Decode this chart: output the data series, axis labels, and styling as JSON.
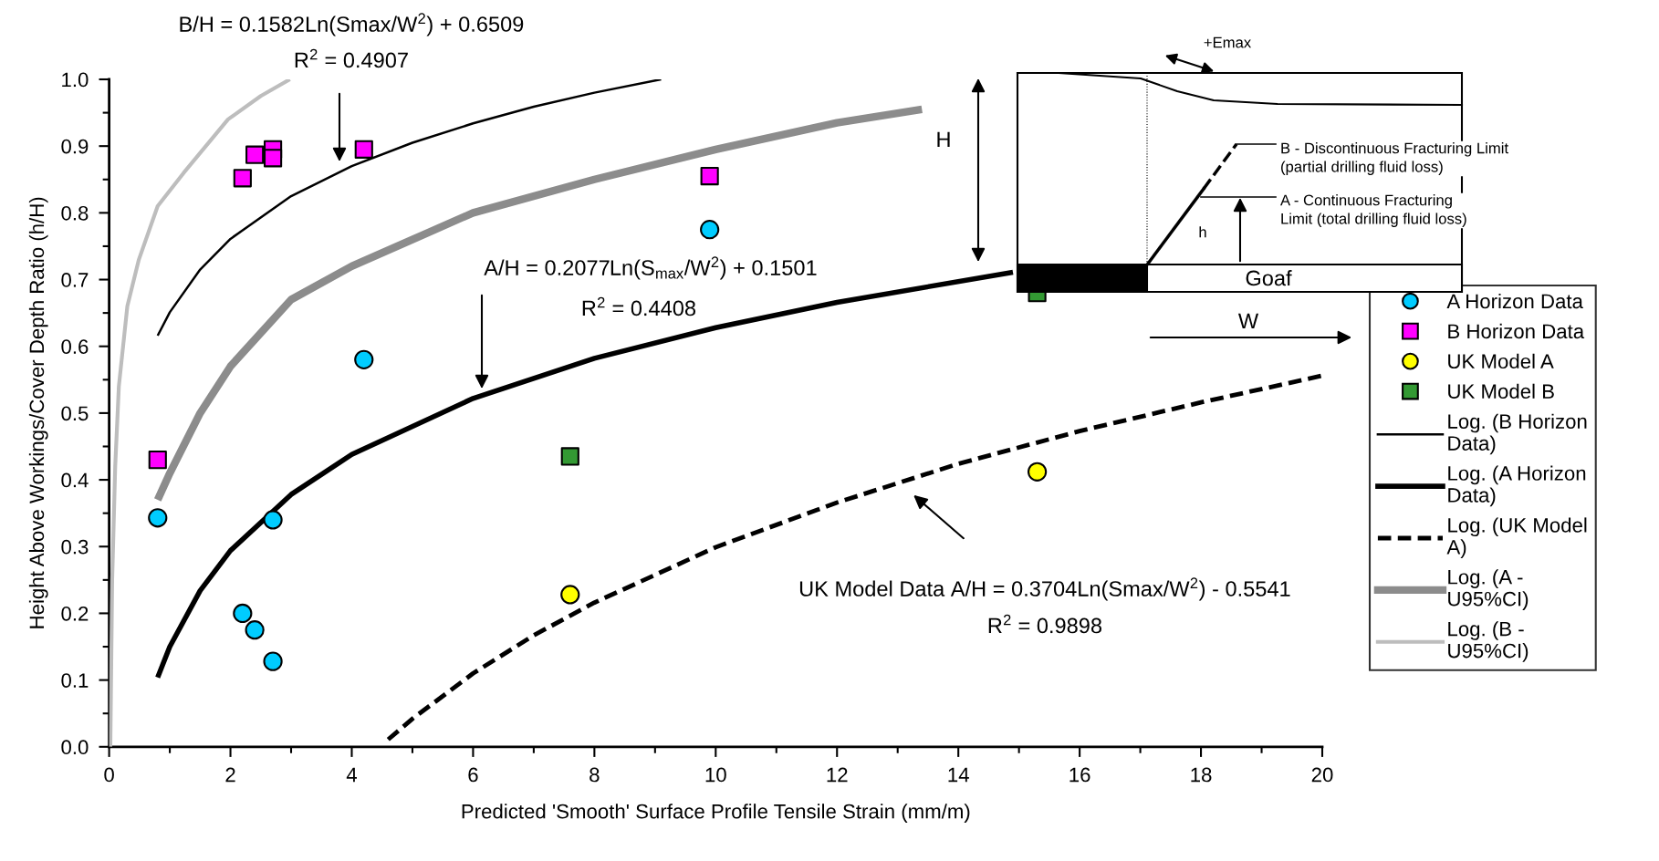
{
  "chart_data": {
    "type": "scatter",
    "xlabel": "Predicted 'Smooth' Surface Profile Tensile Strain (mm/m)",
    "ylabel": "Height Above Workings/Cover Depth Ratio (h/H)",
    "xlim": [
      0,
      20
    ],
    "ylim": [
      0,
      1.0
    ],
    "xticks": [
      0,
      2,
      4,
      6,
      8,
      10,
      12,
      14,
      16,
      18,
      20
    ],
    "yticks": [
      {
        "value": 0,
        "label": "0.0"
      },
      {
        "value": 0.1,
        "label": "0.1"
      },
      {
        "value": 0.2,
        "label": "0.2"
      },
      {
        "value": 0.3,
        "label": "0.3"
      },
      {
        "value": 0.4,
        "label": "0.4"
      },
      {
        "value": 0.5,
        "label": "0.5"
      },
      {
        "value": 0.6,
        "label": "0.6"
      },
      {
        "value": 0.7,
        "label": "0.7"
      },
      {
        "value": 0.8,
        "label": "0.8"
      },
      {
        "value": 0.9,
        "label": "0.9"
      },
      {
        "value": 1.0,
        "label": "1.0"
      }
    ],
    "legend": "right",
    "series": [
      {
        "name": "A Horizon Data",
        "marker": "circle",
        "color": "#00ccff",
        "x": [
          0.8,
          2.7,
          2.2,
          2.4,
          2.7,
          4.2,
          9.9
        ],
        "values": [
          0.343,
          0.34,
          0.2,
          0.175,
          0.128,
          0.58,
          0.775
        ]
      },
      {
        "name": "B Horizon Data",
        "marker": "square",
        "color": "#ff00ff",
        "x": [
          0.8,
          2.2,
          2.4,
          2.7,
          2.7,
          4.2,
          9.9
        ],
        "values": [
          0.43,
          0.852,
          0.887,
          0.895,
          0.882,
          0.895,
          0.855
        ]
      },
      {
        "name": "UK Model A",
        "marker": "circle",
        "color": "#ffff00",
        "x": [
          7.6,
          15.3
        ],
        "values": [
          0.228,
          0.412
        ]
      },
      {
        "name": "UK Model B",
        "marker": "square",
        "color": "#339933",
        "x": [
          7.6,
          15.3
        ],
        "values": [
          0.435,
          0.68
        ]
      },
      {
        "name": "Log. (B Horizon Data)",
        "type": "line",
        "line_style": "solid",
        "color": "#000000",
        "x": [
          0.8,
          1,
          1.5,
          2,
          3,
          4,
          5,
          6,
          7,
          8,
          9.1
        ],
        "values": [
          0.616,
          0.651,
          0.715,
          0.761,
          0.825,
          0.87,
          0.905,
          0.934,
          0.959,
          0.98,
          1.0
        ]
      },
      {
        "name": "Log. (A Horizon Data)",
        "type": "line",
        "line_style": "solid",
        "color": "#000000",
        "x": [
          0.8,
          1,
          1.5,
          2,
          3,
          4,
          6,
          8,
          10,
          12,
          14.9
        ],
        "values": [
          0.104,
          0.15,
          0.234,
          0.294,
          0.378,
          0.438,
          0.522,
          0.582,
          0.628,
          0.666,
          0.711
        ]
      },
      {
        "name": "Log. (UK Model A)",
        "type": "line",
        "line_style": "dashed",
        "color": "#000000",
        "x": [
          4.6,
          5,
          6,
          7,
          8,
          10,
          12,
          14,
          16,
          18,
          20
        ],
        "values": [
          0.011,
          0.042,
          0.11,
          0.167,
          0.216,
          0.299,
          0.366,
          0.424,
          0.473,
          0.516,
          0.556
        ]
      },
      {
        "name": "Log. (A - U95%CI)",
        "type": "line",
        "line_style": "solid",
        "color": "#8c8c8c",
        "x": [
          0.8,
          1,
          1.5,
          2,
          3,
          4,
          5,
          6,
          8,
          10,
          12,
          13.4
        ],
        "values": [
          0.37,
          0.41,
          0.5,
          0.57,
          0.67,
          0.72,
          0.76,
          0.8,
          0.85,
          0.895,
          0.935,
          0.955
        ]
      },
      {
        "name": "Log. (B - U95%CI)",
        "type": "line",
        "line_style": "solid",
        "color": "#bdbdbd",
        "x": [
          0.02,
          0.05,
          0.1,
          0.16,
          0.3,
          0.49,
          0.8,
          1.23,
          1.96,
          2.5,
          2.98
        ],
        "values": [
          0.0,
          0.25,
          0.42,
          0.54,
          0.66,
          0.73,
          0.81,
          0.86,
          0.94,
          0.975,
          1.0
        ]
      }
    ],
    "annotations": [
      "B/H = 0.1582Ln(Smax/W$^{2}$) + 0.6509",
      "A/H = 0.2077Ln(S$_{max}$/W$^{2}$) + 0.1501",
      "UK Model Data A/H = 0.3704Ln(Smax/W$^{2}$) - 0.5541",
      "R$^{2}$ = 0.4907",
      "R$^{2}$ = 0.4408",
      "R$^{2}$ = 0.9898",
      "+Emax",
      "H",
      "B - Discontinuous Fracturing Limit\n(partial drilling fluid loss)",
      "A - Continuous Fracturing\nLimit (total drilling fluid loss)",
      "h",
      "Goaf",
      "W"
    ]
  }
}
